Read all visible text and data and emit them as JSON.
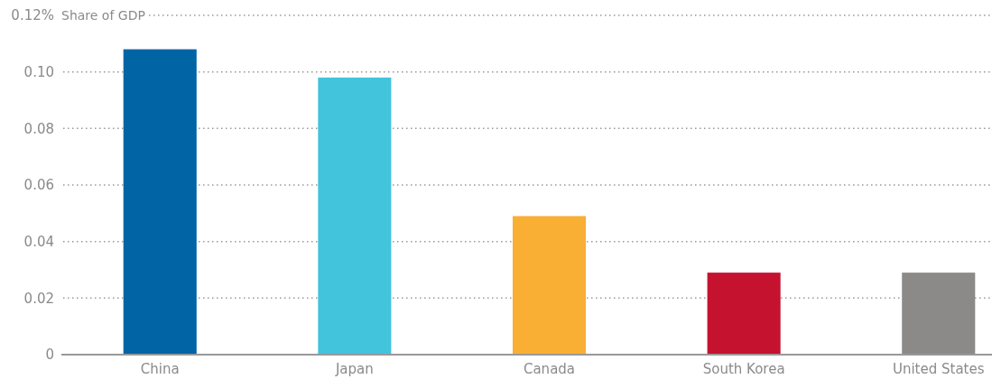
{
  "chart_data": {
    "type": "bar",
    "ylabel": "Share of GDP",
    "categories": [
      "China",
      "Japan",
      "Canada",
      "South Korea",
      "United States"
    ],
    "values": [
      0.108,
      0.098,
      0.049,
      0.029,
      0.029
    ],
    "colors": [
      "#0064a5",
      "#42c4dc",
      "#f9ae34",
      "#c4122f",
      "#8b8a88"
    ],
    "ylim": [
      0,
      0.12
    ],
    "yticks": [
      0,
      0.02,
      0.04,
      0.06,
      0.08,
      {
        "value": 0.1,
        "label": "0.10"
      },
      {
        "value": 0.12,
        "label": "0.12%"
      }
    ],
    "grid": "y"
  }
}
